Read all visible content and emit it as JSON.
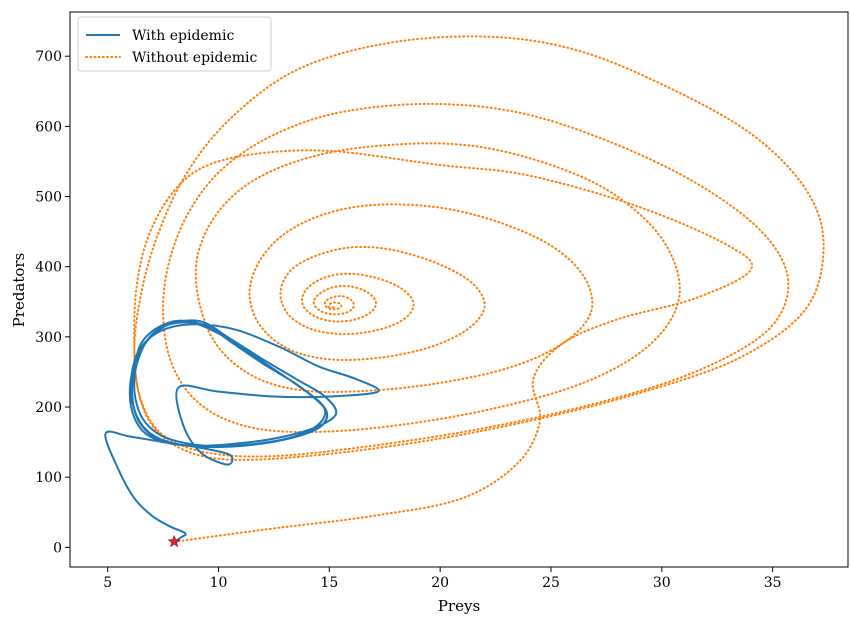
{
  "chart_data": {
    "type": "line",
    "xlabel": "Preys",
    "ylabel": "Predators",
    "xlim": [
      3.3,
      38.4
    ],
    "ylim": [
      -28,
      763
    ],
    "xticks": [
      5,
      10,
      15,
      20,
      25,
      30,
      35
    ],
    "yticks": [
      0,
      100,
      200,
      300,
      400,
      500,
      600,
      700
    ],
    "grid": false,
    "legend_position": "top-left",
    "start_point": {
      "x": 8.0,
      "y": 8.0,
      "marker": "star",
      "color": "#d62728"
    },
    "series": [
      {
        "name": "With epidemic",
        "style": "solid",
        "color": "#1f77b4",
        "points": [
          [
            8.0,
            8
          ],
          [
            8.3,
            14
          ],
          [
            8.5,
            20
          ],
          [
            7.8,
            30
          ],
          [
            7.0,
            45
          ],
          [
            6.2,
            70
          ],
          [
            5.5,
            110
          ],
          [
            4.9,
            162
          ],
          [
            6.0,
            158
          ],
          [
            7.5,
            150
          ],
          [
            9.0,
            143
          ],
          [
            10.5,
            132
          ],
          [
            10.4,
            118
          ],
          [
            9.2,
            135
          ],
          [
            8.4,
            175
          ],
          [
            8.2,
            228
          ],
          [
            10.0,
            222
          ],
          [
            12.5,
            215
          ],
          [
            15.0,
            215
          ],
          [
            17.2,
            222
          ],
          [
            16.2,
            240
          ],
          [
            14.5,
            258
          ],
          [
            12.8,
            285
          ],
          [
            10.8,
            310
          ],
          [
            9.0,
            318
          ],
          [
            7.5,
            310
          ],
          [
            6.5,
            285
          ],
          [
            6.1,
            250
          ],
          [
            6.1,
            210
          ],
          [
            6.5,
            175
          ],
          [
            7.4,
            152
          ],
          [
            8.8,
            145
          ],
          [
            10.5,
            147
          ],
          [
            12.5,
            155
          ],
          [
            14.3,
            170
          ],
          [
            15.3,
            190
          ],
          [
            14.8,
            215
          ],
          [
            13.5,
            240
          ],
          [
            12.0,
            268
          ],
          [
            10.5,
            298
          ],
          [
            9.2,
            322
          ],
          [
            7.8,
            318
          ],
          [
            6.8,
            295
          ],
          [
            6.2,
            260
          ],
          [
            6.0,
            220
          ],
          [
            6.2,
            185
          ],
          [
            6.8,
            160
          ],
          [
            8.0,
            147
          ],
          [
            9.8,
            144
          ],
          [
            11.8,
            148
          ],
          [
            13.5,
            158
          ],
          [
            14.6,
            172
          ],
          [
            14.9,
            190
          ],
          [
            14.5,
            208
          ],
          [
            13.4,
            235
          ],
          [
            12.0,
            262
          ],
          [
            10.6,
            292
          ],
          [
            9.5,
            315
          ],
          [
            8.2,
            323
          ],
          [
            7.2,
            312
          ],
          [
            6.5,
            290
          ],
          [
            6.2,
            255
          ],
          [
            6.1,
            220
          ],
          [
            6.3,
            188
          ],
          [
            6.9,
            163
          ],
          [
            8.0,
            148
          ],
          [
            9.6,
            143
          ],
          [
            11.5,
            146
          ],
          [
            13.3,
            156
          ],
          [
            14.5,
            170
          ],
          [
            14.9,
            188
          ],
          [
            14.6,
            206
          ],
          [
            13.7,
            228
          ],
          [
            12.4,
            256
          ],
          [
            11.0,
            286
          ],
          [
            9.8,
            308
          ],
          [
            8.8,
            320
          ],
          [
            7.7,
            317
          ],
          [
            6.9,
            300
          ],
          [
            6.4,
            270
          ],
          [
            6.2,
            238
          ],
          [
            6.3,
            205
          ],
          [
            6.7,
            178
          ],
          [
            7.5,
            158
          ],
          [
            8.8,
            147
          ],
          [
            10.5,
            144
          ],
          [
            12.3,
            150
          ],
          [
            13.8,
            162
          ],
          [
            14.6,
            178
          ],
          [
            14.8,
            196
          ],
          [
            14.3,
            214
          ],
          [
            13.4,
            235
          ]
        ]
      },
      {
        "name": "Without epidemic",
        "style": "dotted",
        "color": "#ff7f0e",
        "points": [
          [
            8.0,
            8
          ],
          [
            12.0,
            25
          ],
          [
            17.0,
            45
          ],
          [
            21.0,
            70
          ],
          [
            23.5,
            120
          ],
          [
            24.5,
            180
          ],
          [
            24.2,
            240
          ],
          [
            25.5,
            290
          ],
          [
            28.0,
            325
          ],
          [
            31.5,
            355
          ],
          [
            34.0,
            395
          ],
          [
            33.0,
            430
          ],
          [
            29.0,
            485
          ],
          [
            24.0,
            530
          ],
          [
            20.0,
            545
          ],
          [
            15.0,
            565
          ],
          [
            11.5,
            560
          ],
          [
            9.2,
            540
          ],
          [
            7.8,
            500
          ],
          [
            6.8,
            440
          ],
          [
            6.3,
            370
          ],
          [
            6.2,
            290
          ],
          [
            6.4,
            220
          ],
          [
            7.1,
            170
          ],
          [
            8.5,
            138
          ],
          [
            10.5,
            125
          ],
          [
            14.0,
            130
          ],
          [
            19.0,
            150
          ],
          [
            24.0,
            180
          ],
          [
            29.0,
            220
          ],
          [
            33.5,
            270
          ],
          [
            36.5,
            340
          ],
          [
            37.3,
            430
          ],
          [
            36.5,
            510
          ],
          [
            34.0,
            590
          ],
          [
            30.0,
            660
          ],
          [
            26.0,
            710
          ],
          [
            22.0,
            728
          ],
          [
            17.5,
            718
          ],
          [
            13.5,
            680
          ],
          [
            10.5,
            610
          ],
          [
            8.5,
            530
          ],
          [
            7.2,
            440
          ],
          [
            6.5,
            360
          ],
          [
            6.2,
            280
          ],
          [
            6.5,
            210
          ],
          [
            7.5,
            160
          ],
          [
            9.5,
            135
          ],
          [
            12.5,
            130
          ],
          [
            17.0,
            145
          ],
          [
            22.0,
            170
          ],
          [
            27.0,
            205
          ],
          [
            31.5,
            250
          ],
          [
            34.8,
            310
          ],
          [
            35.7,
            380
          ],
          [
            34.5,
            450
          ],
          [
            31.5,
            520
          ],
          [
            27.5,
            580
          ],
          [
            23.5,
            620
          ],
          [
            19.5,
            632
          ],
          [
            15.5,
            620
          ],
          [
            12.5,
            588
          ],
          [
            10.2,
            540
          ],
          [
            8.7,
            480
          ],
          [
            7.8,
            410
          ],
          [
            7.5,
            340
          ],
          [
            7.8,
            270
          ],
          [
            8.8,
            215
          ],
          [
            10.5,
            180
          ],
          [
            13.0,
            165
          ],
          [
            17.0,
            170
          ],
          [
            22.0,
            195
          ],
          [
            26.5,
            235
          ],
          [
            29.5,
            290
          ],
          [
            30.8,
            360
          ],
          [
            30.0,
            440
          ],
          [
            27.5,
            510
          ],
          [
            24.0,
            555
          ],
          [
            20.5,
            575
          ],
          [
            16.5,
            570
          ],
          [
            13.5,
            550
          ],
          [
            11.2,
            515
          ],
          [
            9.7,
            465
          ],
          [
            9.0,
            405
          ],
          [
            9.2,
            340
          ],
          [
            10.0,
            285
          ],
          [
            11.5,
            245
          ],
          [
            13.5,
            225
          ],
          [
            16.0,
            222
          ],
          [
            19.5,
            232
          ],
          [
            23.0,
            255
          ],
          [
            25.5,
            290
          ],
          [
            26.8,
            335
          ],
          [
            26.5,
            385
          ],
          [
            25.0,
            430
          ],
          [
            22.5,
            465
          ],
          [
            19.8,
            485
          ],
          [
            17.0,
            488
          ],
          [
            14.7,
            474
          ],
          [
            12.9,
            445
          ],
          [
            11.8,
            405
          ],
          [
            11.4,
            360
          ],
          [
            11.9,
            315
          ],
          [
            13.2,
            282
          ],
          [
            15.0,
            268
          ],
          [
            17.2,
            270
          ],
          [
            19.5,
            285
          ],
          [
            21.2,
            310
          ],
          [
            22.0,
            342
          ],
          [
            21.5,
            375
          ],
          [
            20.0,
            403
          ],
          [
            18.0,
            423
          ],
          [
            16.2,
            428
          ],
          [
            14.6,
            418
          ],
          [
            13.3,
            396
          ],
          [
            12.8,
            365
          ],
          [
            13.1,
            334
          ],
          [
            14.1,
            312
          ],
          [
            15.6,
            304
          ],
          [
            17.2,
            310
          ],
          [
            18.4,
            326
          ],
          [
            18.8,
            348
          ],
          [
            18.2,
            370
          ],
          [
            17.0,
            385
          ],
          [
            15.7,
            390
          ],
          [
            14.6,
            382
          ],
          [
            13.9,
            365
          ],
          [
            13.8,
            346
          ],
          [
            14.3,
            330
          ],
          [
            15.2,
            322
          ],
          [
            16.2,
            325
          ],
          [
            16.9,
            336
          ],
          [
            17.1,
            350
          ],
          [
            16.7,
            364
          ],
          [
            15.9,
            372
          ],
          [
            15.1,
            370
          ],
          [
            14.5,
            360
          ],
          [
            14.3,
            348
          ],
          [
            14.6,
            337
          ],
          [
            15.2,
            332
          ],
          [
            15.8,
            335
          ],
          [
            16.1,
            343
          ],
          [
            16.0,
            352
          ],
          [
            15.6,
            358
          ],
          [
            15.1,
            356
          ],
          [
            14.8,
            349
          ],
          [
            14.9,
            342
          ],
          [
            15.2,
            339
          ],
          [
            15.5,
            342
          ],
          [
            15.5,
            347
          ],
          [
            15.2,
            349
          ],
          [
            15.0,
            346
          ],
          [
            15.0,
            342
          ],
          [
            15.2,
            342
          ]
        ]
      }
    ]
  }
}
